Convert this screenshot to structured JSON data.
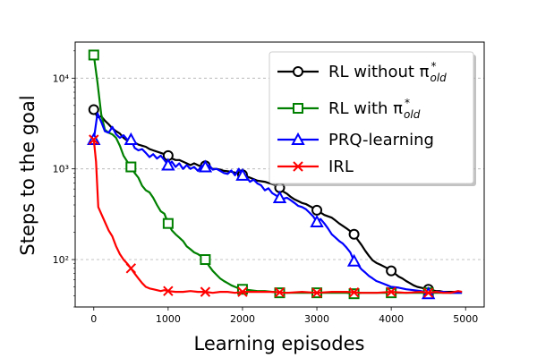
{
  "chart_data": {
    "type": "line",
    "title": "",
    "xlabel": "Learning episodes",
    "ylabel": "Steps to the goal",
    "xlim": [
      -250,
      5250
    ],
    "ylim": [
      30,
      25000
    ],
    "yscale": "log",
    "grid": "y-major-dashed",
    "x_ticks": [
      0,
      1000,
      2000,
      3000,
      4000,
      5000
    ],
    "x_tick_labels": [
      "0",
      "1000",
      "2000",
      "3000",
      "4000",
      "5000"
    ],
    "y_ticks": [
      100,
      1000,
      10000
    ],
    "y_tick_labels": [
      "10²",
      "10³",
      "10⁴"
    ],
    "legend_position": "top-right",
    "series": [
      {
        "name": "RL without π*old",
        "legend": {
          "main": "RL without π",
          "sup": "*",
          "sub": "old"
        },
        "color": "#000000",
        "marker": "circle",
        "x": [
          0,
          50,
          100,
          150,
          200,
          250,
          300,
          350,
          400,
          450,
          500,
          550,
          600,
          650,
          700,
          750,
          800,
          850,
          900,
          950,
          1000,
          1050,
          1100,
          1150,
          1200,
          1250,
          1300,
          1350,
          1400,
          1450,
          1500,
          1550,
          1600,
          1650,
          1700,
          1750,
          1800,
          1850,
          1900,
          1950,
          2000,
          2050,
          2100,
          2150,
          2200,
          2250,
          2300,
          2350,
          2400,
          2450,
          2500,
          2550,
          2600,
          2650,
          2700,
          2750,
          2800,
          2850,
          2900,
          2950,
          3000,
          3050,
          3100,
          3150,
          3200,
          3250,
          3300,
          3350,
          3400,
          3450,
          3500,
          3550,
          3600,
          3650,
          3700,
          3750,
          3800,
          3850,
          3900,
          3950,
          4000,
          4050,
          4100,
          4150,
          4200,
          4250,
          4300,
          4350,
          4400,
          4450,
          4500,
          4550,
          4600,
          4650,
          4700,
          4750,
          4800,
          4850,
          4900,
          4950
        ],
        "y": [
          4500,
          3700,
          3800,
          3400,
          3100,
          2800,
          2600,
          2450,
          2200,
          2050,
          2000,
          1950,
          1850,
          1800,
          1750,
          1650,
          1600,
          1550,
          1500,
          1450,
          1400,
          1300,
          1250,
          1250,
          1200,
          1150,
          1100,
          1150,
          1100,
          1050,
          1080,
          1050,
          1000,
          1000,
          980,
          950,
          940,
          930,
          910,
          880,
          860,
          830,
          800,
          770,
          740,
          730,
          720,
          700,
          680,
          650,
          620,
          560,
          530,
          490,
          460,
          440,
          420,
          410,
          390,
          370,
          350,
          330,
          310,
          300,
          290,
          270,
          250,
          235,
          220,
          205,
          190,
          165,
          145,
          125,
          110,
          98,
          92,
          88,
          84,
          80,
          75,
          70,
          65,
          62,
          58,
          55,
          52,
          50,
          49,
          48,
          47,
          46,
          45,
          45,
          44,
          44,
          44,
          44,
          44,
          44
        ],
        "markers_at": [
          0,
          1000,
          1500,
          2000,
          2500,
          3000,
          3500,
          4000,
          4500
        ]
      },
      {
        "name": "RL with π*old",
        "legend": {
          "main": "RL with π",
          "sup": "*",
          "sub": "old"
        },
        "color": "#008000",
        "marker": "square",
        "x": [
          0,
          50,
          100,
          150,
          200,
          250,
          300,
          350,
          400,
          450,
          500,
          550,
          600,
          650,
          700,
          750,
          800,
          850,
          900,
          950,
          1000,
          1050,
          1100,
          1150,
          1200,
          1250,
          1300,
          1350,
          1400,
          1450,
          1500,
          1550,
          1600,
          1650,
          1700,
          1750,
          1800,
          1850,
          1900,
          1950,
          2000,
          2100,
          2200,
          2300,
          2400,
          2500,
          2600,
          2700,
          2800,
          2900,
          3000,
          3100,
          3200,
          3300,
          3400,
          3500,
          3600,
          3700,
          3800,
          3900,
          4000,
          4100,
          4200,
          4300,
          4400,
          4500,
          4600,
          4700,
          4800,
          4900,
          4950
        ],
        "y": [
          18000,
          9000,
          4000,
          2700,
          2500,
          2400,
          2200,
          1800,
          1400,
          1200,
          1050,
          900,
          800,
          650,
          580,
          550,
          480,
          400,
          340,
          320,
          250,
          210,
          190,
          175,
          160,
          140,
          130,
          120,
          115,
          108,
          100,
          85,
          75,
          68,
          62,
          58,
          55,
          52,
          50,
          48,
          47,
          46,
          45,
          45,
          44,
          43,
          43,
          43,
          43,
          43,
          43,
          43,
          43,
          43,
          43,
          42,
          43,
          43,
          43,
          43,
          43,
          43,
          43,
          43,
          43,
          43,
          43,
          43,
          43,
          43,
          43
        ],
        "markers_at": [
          0,
          500,
          1000,
          1500,
          2000,
          2500,
          3000,
          3500,
          4000,
          4500
        ]
      },
      {
        "name": "PRQ-learning",
        "color": "#0000ff",
        "marker": "triangle",
        "x": [
          0,
          50,
          100,
          150,
          200,
          250,
          300,
          350,
          400,
          450,
          500,
          550,
          600,
          650,
          700,
          750,
          800,
          850,
          900,
          950,
          1000,
          1050,
          1100,
          1150,
          1200,
          1250,
          1300,
          1350,
          1400,
          1450,
          1500,
          1550,
          1600,
          1650,
          1700,
          1750,
          1800,
          1850,
          1900,
          1950,
          2000,
          2050,
          2100,
          2150,
          2200,
          2250,
          2300,
          2350,
          2400,
          2450,
          2500,
          2550,
          2600,
          2650,
          2700,
          2750,
          2800,
          2850,
          2900,
          2950,
          3000,
          3050,
          3100,
          3150,
          3200,
          3250,
          3300,
          3350,
          3400,
          3450,
          3500,
          3550,
          3600,
          3650,
          3700,
          3750,
          3800,
          3850,
          3900,
          3950,
          4000,
          4100,
          4200,
          4300,
          4400,
          4500,
          4600,
          4700,
          4800,
          4900,
          4950
        ],
        "y": [
          2100,
          4100,
          3300,
          2600,
          2500,
          2900,
          2400,
          2200,
          2350,
          2100,
          2100,
          1700,
          1600,
          1650,
          1500,
          1350,
          1450,
          1300,
          1400,
          1250,
          1100,
          1200,
          1050,
          1150,
          1000,
          1100,
          1000,
          1050,
          950,
          1080,
          1050,
          1100,
          980,
          1000,
          950,
          900,
          880,
          960,
          850,
          1000,
          850,
          820,
          720,
          760,
          690,
          660,
          580,
          610,
          540,
          510,
          480,
          470,
          480,
          450,
          420,
          390,
          380,
          360,
          330,
          300,
          260,
          280,
          250,
          220,
          190,
          175,
          160,
          150,
          135,
          120,
          96,
          88,
          78,
          72,
          66,
          62,
          58,
          56,
          54,
          52,
          50,
          49,
          47,
          46,
          45,
          42,
          44,
          44,
          43,
          43,
          43
        ],
        "markers_at": [
          0,
          500,
          1000,
          1500,
          2000,
          2500,
          3000,
          3500,
          4500
        ]
      },
      {
        "name": "IRL",
        "color": "#ff0000",
        "marker": "x",
        "x": [
          0,
          30,
          60,
          100,
          150,
          200,
          250,
          300,
          350,
          400,
          450,
          500,
          550,
          600,
          650,
          700,
          750,
          800,
          850,
          900,
          950,
          1000,
          1100,
          1200,
          1300,
          1400,
          1500,
          1600,
          1700,
          1800,
          1900,
          2000,
          2200,
          2400,
          2600,
          2800,
          3000,
          3200,
          3400,
          3600,
          3800,
          4000,
          4200,
          4400,
          4500,
          4600,
          4700,
          4800,
          4900,
          4950
        ],
        "y": [
          2100,
          1200,
          380,
          320,
          260,
          210,
          180,
          140,
          115,
          100,
          90,
          80,
          70,
          62,
          55,
          50,
          48,
          47,
          46,
          45,
          46,
          45,
          44,
          44,
          45,
          44,
          44,
          43,
          44,
          44,
          43,
          44,
          44,
          44,
          43,
          44,
          43,
          44,
          44,
          43,
          43,
          44,
          43,
          44,
          43,
          44,
          43,
          43,
          45,
          44
        ],
        "markers_at": [
          0,
          500,
          1000,
          1500,
          2000,
          2500,
          3000,
          3500,
          4000,
          4500
        ]
      }
    ]
  }
}
